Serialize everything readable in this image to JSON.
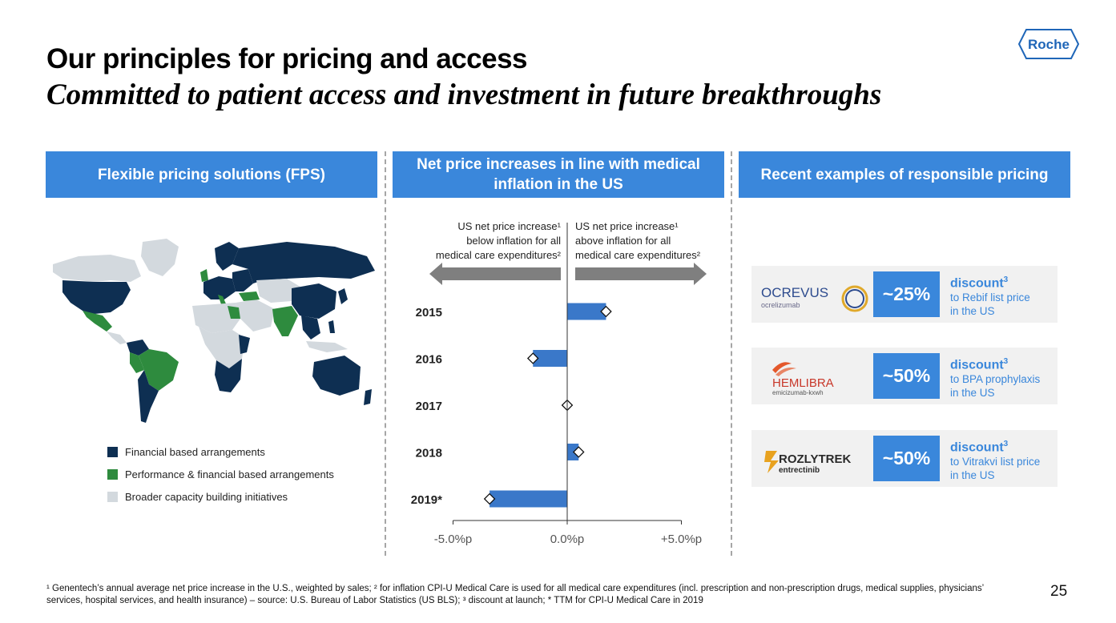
{
  "title": "Our principles for pricing and access",
  "subtitle": "Committed to patient access and investment in future breakthroughs",
  "logo_text": "Roche",
  "columns": [
    {
      "header": "Flexible pricing solutions (FPS)"
    },
    {
      "header": "Net price increases in line with medical inflation in the US"
    },
    {
      "header": "Recent examples of responsible pricing"
    }
  ],
  "legend": [
    {
      "label": "Financial based arrangements",
      "color": "#0e2f52"
    },
    {
      "label": "Performance & financial based arrangements",
      "color": "#2e8b3e"
    },
    {
      "label": "Broader capacity building initiatives",
      "color": "#d3d9de"
    }
  ],
  "colors": {
    "accent": "#3a87db",
    "arrow": "#7f7f7f",
    "card_bg": "#f1f1f1"
  },
  "chart_data": {
    "type": "bar",
    "orientation": "horizontal",
    "categories": [
      "2015",
      "2016",
      "2017",
      "2018",
      "2019*"
    ],
    "series": [
      {
        "values": [
          1.7,
          -1.5,
          0.0,
          0.5,
          -3.4
        ]
      }
    ],
    "markers": [
      1.7,
      -1.5,
      0.0,
      0.5,
      -3.4
    ],
    "xlim": [
      -5.0,
      5.0
    ],
    "tick_labels": [
      "-5.0%p",
      "0.0%p",
      "+5.0%p"
    ],
    "tick_values": [
      -5.0,
      0.0,
      5.0
    ],
    "left_label": [
      "US net price increase¹",
      "below inflation for all",
      "medical care expenditures²"
    ],
    "right_label": [
      "US net price increase¹",
      "above inflation for all",
      "medical care expenditures²"
    ],
    "grid": false
  },
  "examples": [
    {
      "brand": "OCREVUS",
      "generic": "ocrelizumab",
      "pct": "~25%",
      "discount": "discount",
      "sup": "3",
      "line1": "to Rebif list price",
      "line2": "in the US"
    },
    {
      "brand": "HEMLIBRA",
      "generic": "emicizumab-kxwh",
      "pct": "~50%",
      "discount": "discount",
      "sup": "3",
      "line1": "to BPA prophylaxis",
      "line2": "in the US"
    },
    {
      "brand": "ROZLYTREK",
      "generic": "entrectinib",
      "pct": "~50%",
      "discount": "discount",
      "sup": "3",
      "line1": "to Vitrakvi list price",
      "line2": "in the US"
    }
  ],
  "footnote": "¹ Genentech’s annual average net price increase in the U.S., weighted by sales; ² for inflation CPI-U Medical Care is used for all medical care expenditures (incl. prescription and non-prescription drugs, medical supplies, physicians’ services, hospital services, and health insurance) – source: U.S. Bureau of Labor Statistics (US BLS); ³ discount at launch; * TTM for CPI-U Medical Care in 2019",
  "page_number": "25"
}
